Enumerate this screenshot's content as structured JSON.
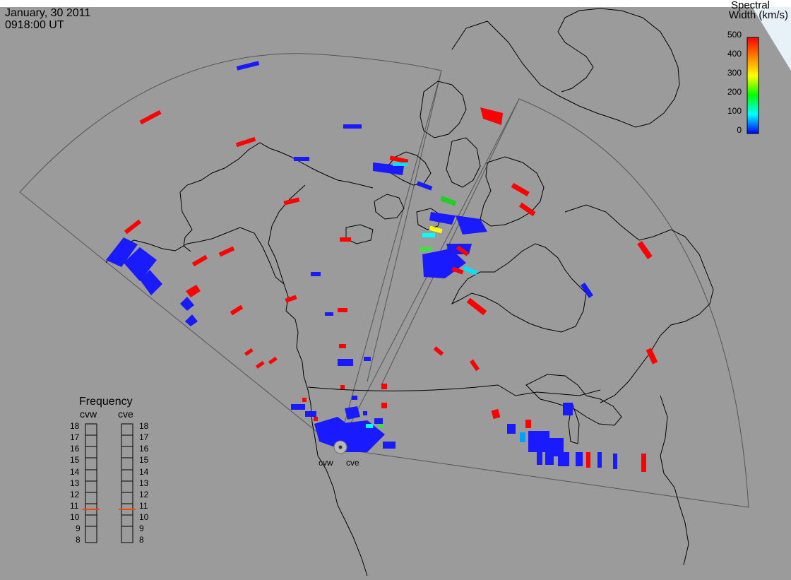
{
  "header": {
    "date": "January, 30 2011",
    "time": "0918:00 UT"
  },
  "legend": {
    "title_line1": "Spectral",
    "title_line2": "Width (km/s)",
    "ticks": [
      "500",
      "400",
      "300",
      "200",
      "100",
      "0"
    ],
    "colorscale": [
      "#ff0000",
      "#ff8000",
      "#ffff00",
      "#00ff00",
      "#00ffff",
      "#0000ff"
    ]
  },
  "frequency_panel": {
    "title": "Frequency",
    "left_label": "cvw",
    "right_label": "cve",
    "scale": [
      "18",
      "17",
      "16",
      "15",
      "14",
      "13",
      "12",
      "11",
      "10",
      "9",
      "8"
    ],
    "left_marker_mhz": 10.8,
    "right_marker_mhz": 10.8,
    "marker_color": "#ff4400"
  },
  "sites": {
    "west": "cvw",
    "east": "cve"
  },
  "colors": {
    "background": "#9b9b9b",
    "coastline": "#000000",
    "fov_outline": "#444444",
    "corner_triangle": "#e6f2f8"
  }
}
